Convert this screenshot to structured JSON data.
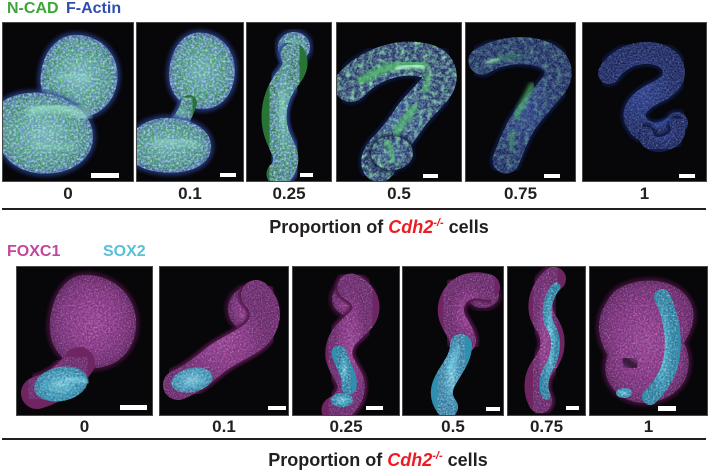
{
  "figure": {
    "top_section": {
      "legend": [
        {
          "label": "N-CAD",
          "color": "#3ea43b"
        },
        {
          "label": "F-Actin",
          "color": "#2f4dad"
        }
      ],
      "proportions": [
        "0",
        "0.1",
        "0.25",
        "0.5",
        "0.75",
        "1"
      ],
      "caption": {
        "prefix": "Proportion of ",
        "gene": "Cdh2",
        "superscript": "-/-",
        "suffix": " cells"
      }
    },
    "bottom_section": {
      "legend": [
        {
          "label": "FOXC1",
          "color": "#c2459f"
        },
        {
          "label": "SOX2",
          "color": "#58c0d8"
        }
      ],
      "proportions": [
        "0",
        "0.1",
        "0.25",
        "0.5",
        "0.75",
        "1"
      ],
      "caption": {
        "prefix": "Proportion of ",
        "gene": "Cdh2",
        "superscript": "-/-",
        "suffix": " cells"
      }
    },
    "colors": {
      "gene_red": "#ec1c24",
      "text": "#231f20",
      "panel_bg": "#07070a",
      "scale_bar": "#ffffff"
    }
  }
}
